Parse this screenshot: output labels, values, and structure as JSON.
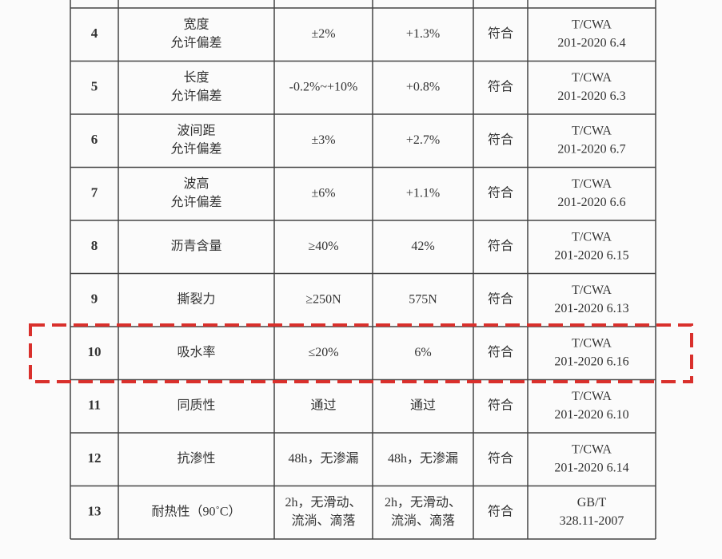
{
  "table": {
    "rows": [
      {
        "no": "4",
        "item": [
          "宽度",
          "允许偏差"
        ],
        "requirement": [
          "±2%"
        ],
        "result": [
          "+1.3%"
        ],
        "conclusion": "符合",
        "standard": [
          "T/CWA",
          "201-2020 6.4"
        ]
      },
      {
        "no": "5",
        "item": [
          "长度",
          "允许偏差"
        ],
        "requirement": [
          "-0.2%~+10%"
        ],
        "result": [
          "+0.8%"
        ],
        "conclusion": "符合",
        "standard": [
          "T/CWA",
          "201-2020 6.3"
        ]
      },
      {
        "no": "6",
        "item": [
          "波间距",
          "允许偏差"
        ],
        "requirement": [
          "±3%"
        ],
        "result": [
          "+2.7%"
        ],
        "conclusion": "符合",
        "standard": [
          "T/CWA",
          "201-2020 6.7"
        ]
      },
      {
        "no": "7",
        "item": [
          "波高",
          "允许偏差"
        ],
        "requirement": [
          "±6%"
        ],
        "result": [
          "+1.1%"
        ],
        "conclusion": "符合",
        "standard": [
          "T/CWA",
          "201-2020 6.6"
        ]
      },
      {
        "no": "8",
        "item": [
          "沥青含量"
        ],
        "requirement": [
          "≥40%"
        ],
        "result": [
          "42%"
        ],
        "conclusion": "符合",
        "standard": [
          "T/CWA",
          "201-2020 6.15"
        ]
      },
      {
        "no": "9",
        "item": [
          "撕裂力"
        ],
        "requirement": [
          "≥250N"
        ],
        "result": [
          "575N"
        ],
        "conclusion": "符合",
        "standard": [
          "T/CWA",
          "201-2020 6.13"
        ]
      },
      {
        "no": "10",
        "item": [
          "吸水率"
        ],
        "requirement": [
          "≤20%"
        ],
        "result": [
          "6%"
        ],
        "conclusion": "符合",
        "standard": [
          "T/CWA",
          "201-2020 6.16"
        ]
      },
      {
        "no": "11",
        "item": [
          "同质性"
        ],
        "requirement": [
          "通过"
        ],
        "result": [
          "通过"
        ],
        "conclusion": "符合",
        "standard": [
          "T/CWA",
          "201-2020 6.10"
        ]
      },
      {
        "no": "12",
        "item": [
          "抗渗性"
        ],
        "requirement": [
          "48h，无渗漏"
        ],
        "result": [
          "48h，无渗漏"
        ],
        "conclusion": "符合",
        "standard": [
          "T/CWA",
          "201-2020 6.14"
        ]
      },
      {
        "no": "13",
        "item": [
          "耐热性（90˚C）"
        ],
        "requirement": [
          "2h，无滑动、",
          "流淌、滴落"
        ],
        "result": [
          "2h，无滑动、",
          "流淌、滴落"
        ],
        "conclusion": "符合",
        "standard": [
          "GB/T",
          "328.11-2007"
        ]
      }
    ]
  }
}
